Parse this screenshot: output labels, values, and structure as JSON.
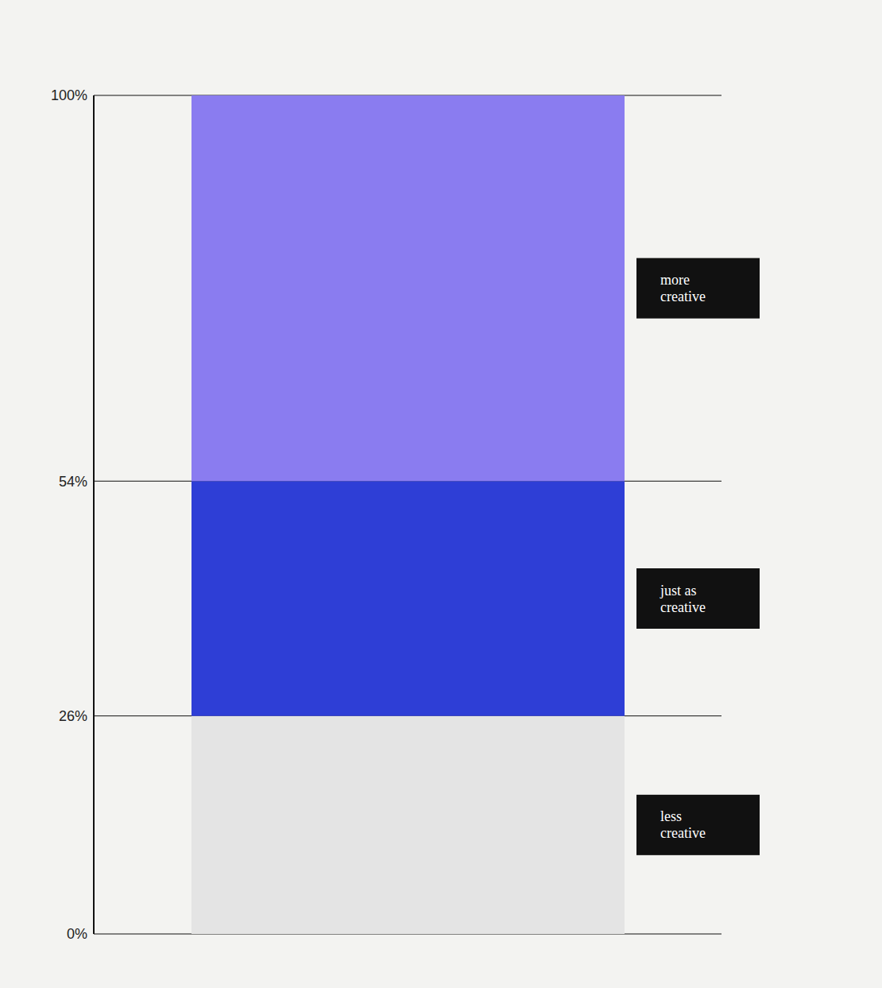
{
  "chart_data": {
    "type": "bar",
    "stacked": true,
    "categories": [
      null
    ],
    "series": [
      {
        "name": "less creative",
        "color": "#e4e4e4",
        "values": [
          26
        ]
      },
      {
        "name": "just as creative",
        "color": "#2e3ed6",
        "values": [
          28
        ]
      },
      {
        "name": "more creative",
        "color": "#8a7cf0",
        "values": [
          46
        ]
      }
    ],
    "ylim": [
      0,
      100
    ],
    "yticks": [
      {
        "value": 0,
        "label": "0%"
      },
      {
        "value": 26,
        "label": "26%"
      },
      {
        "value": 54,
        "label": "54%"
      },
      {
        "value": 100,
        "label": "100%"
      }
    ],
    "grid": true,
    "tick_labels": "y"
  }
}
